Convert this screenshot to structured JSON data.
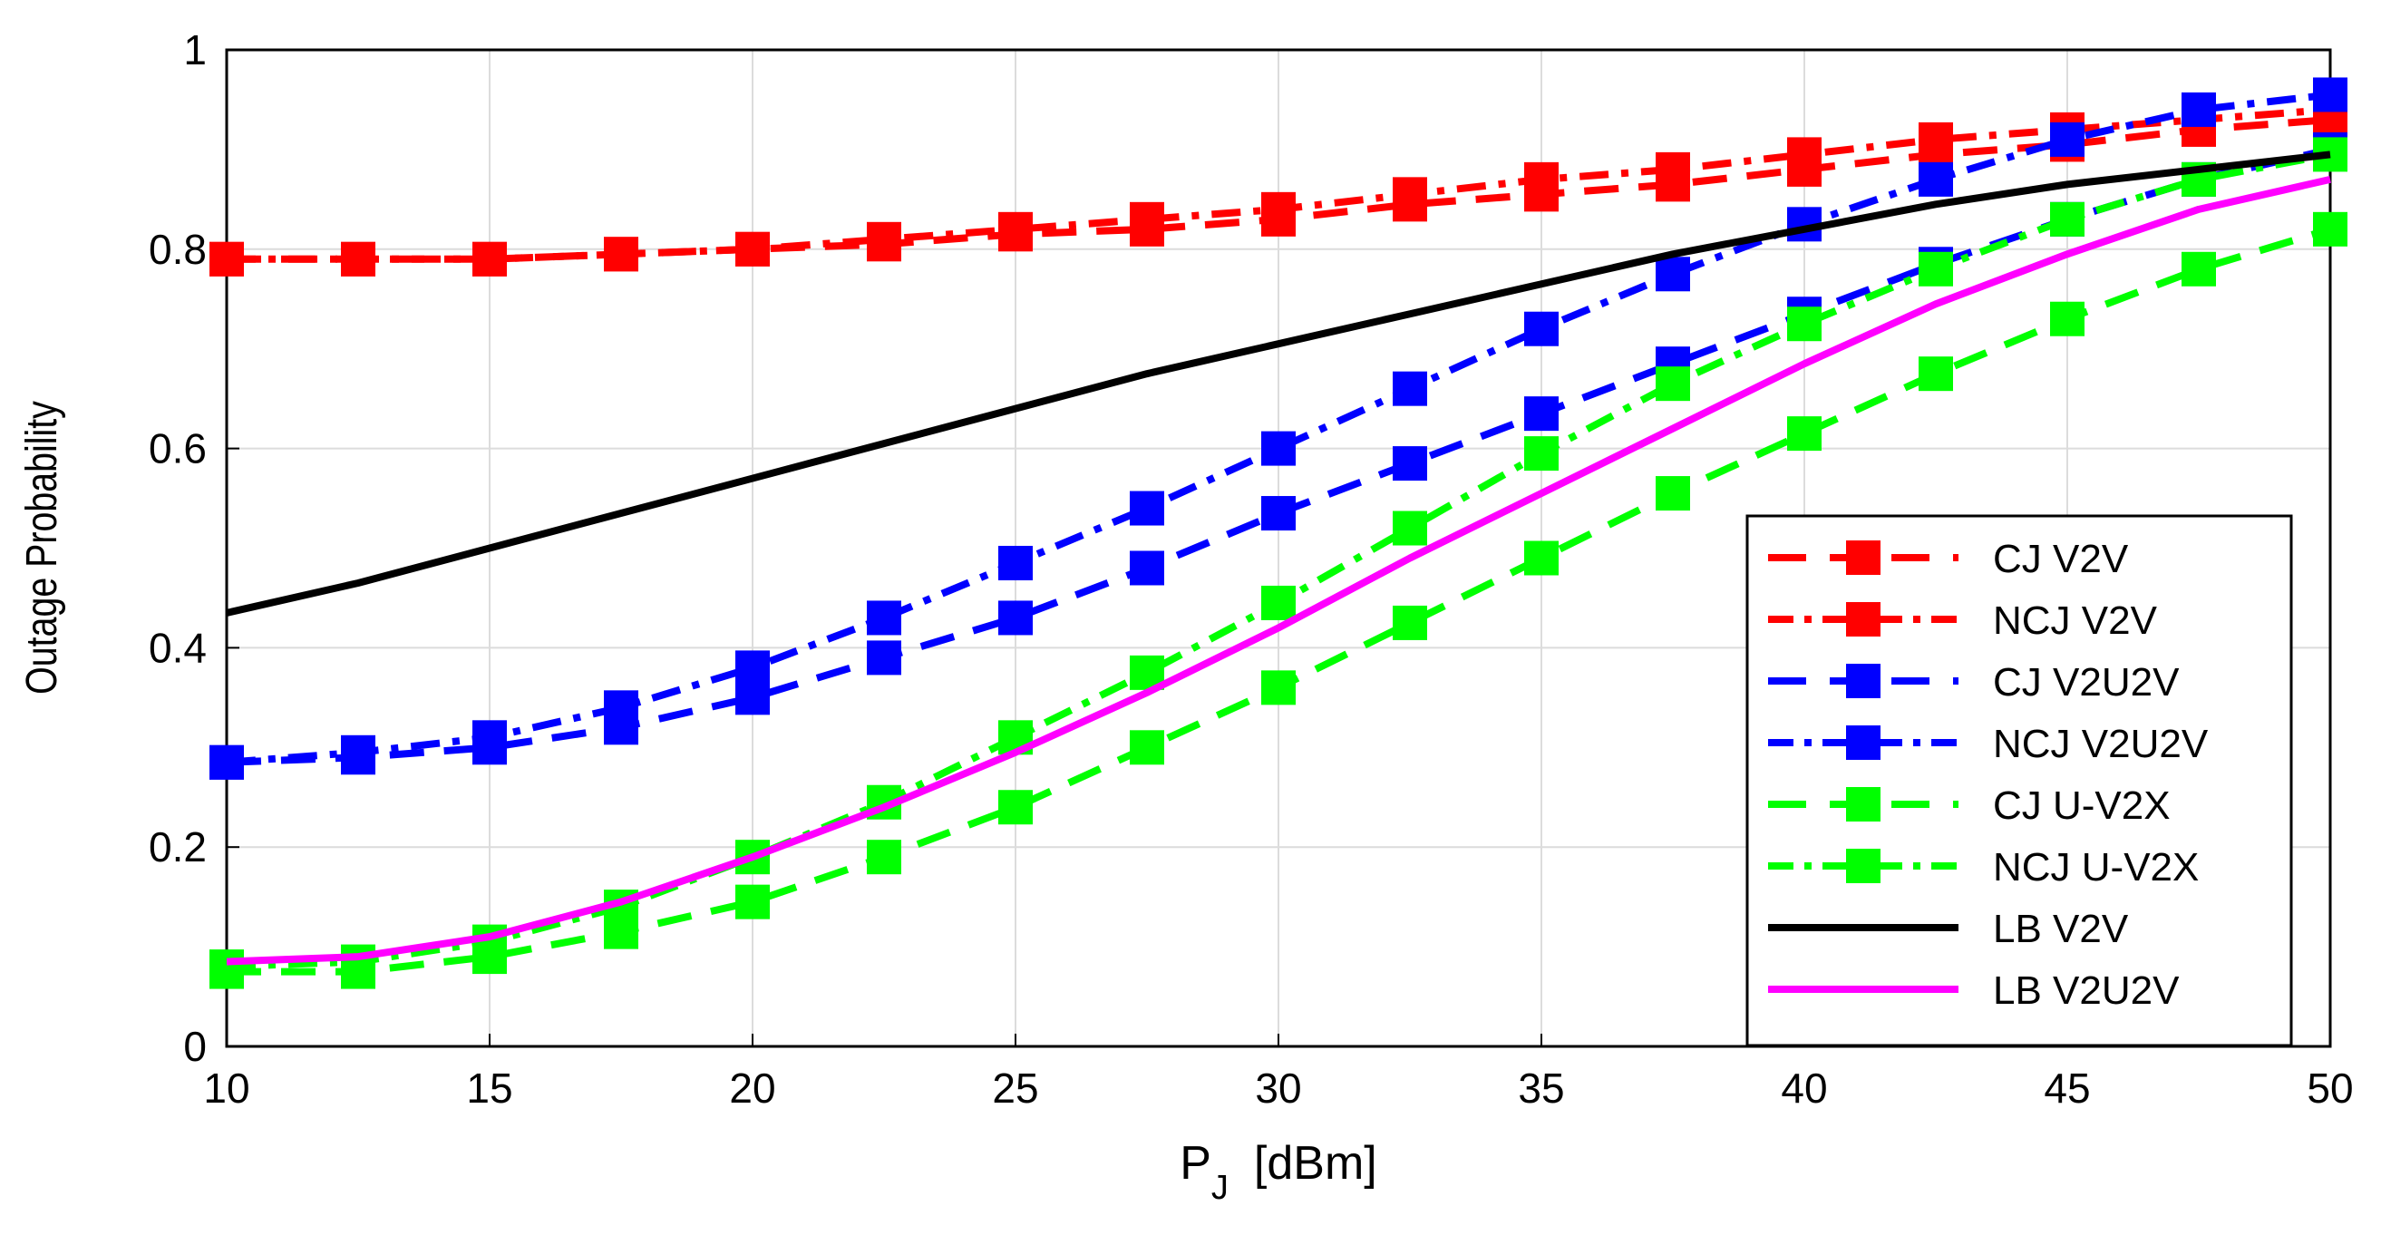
{
  "chart_data": {
    "type": "line",
    "title": "",
    "xlabel_main": "P",
    "xlabel_sub": "J",
    "xlabel_unit": "[dBm]",
    "ylabel": "Outage Probability",
    "xlim": [
      10,
      50
    ],
    "ylim": [
      0,
      1
    ],
    "xticks": [
      10,
      15,
      20,
      25,
      30,
      35,
      40,
      45,
      50
    ],
    "yticks": [
      0,
      0.2,
      0.4,
      0.6,
      0.8,
      1
    ],
    "ytick_labels": [
      "0",
      "0.2",
      "0.4",
      "0.6",
      "0.8",
      "1"
    ],
    "grid": true,
    "legend_position": "bottom-right",
    "x": [
      10,
      12.5,
      15,
      17.5,
      20,
      22.5,
      25,
      27.5,
      30,
      32.5,
      35,
      37.5,
      40,
      42.5,
      45,
      47.5,
      50
    ],
    "series": [
      {
        "name": "CJ V2V",
        "color": "#ff0000",
        "dash": "dashed",
        "marker": "square",
        "values": [
          0.79,
          0.79,
          0.79,
          0.795,
          0.8,
          0.805,
          0.815,
          0.82,
          0.83,
          0.845,
          0.855,
          0.865,
          0.88,
          0.895,
          0.905,
          0.92,
          0.93
        ]
      },
      {
        "name": "NCJ V2V",
        "color": "#ff0000",
        "dash": "dashdot",
        "marker": "square",
        "values": [
          0.79,
          0.79,
          0.79,
          0.795,
          0.8,
          0.81,
          0.82,
          0.83,
          0.84,
          0.855,
          0.87,
          0.88,
          0.895,
          0.91,
          0.92,
          0.93,
          0.94
        ]
      },
      {
        "name": "CJ V2U2V",
        "color": "#0000ff",
        "dash": "dashed",
        "marker": "square",
        "values": [
          0.285,
          0.29,
          0.3,
          0.32,
          0.35,
          0.39,
          0.43,
          0.48,
          0.535,
          0.585,
          0.635,
          0.685,
          0.735,
          0.785,
          0.83,
          0.87,
          0.9
        ]
      },
      {
        "name": "NCJ V2U2V",
        "color": "#0000ff",
        "dash": "dashdot",
        "marker": "square",
        "values": [
          0.285,
          0.295,
          0.31,
          0.34,
          0.38,
          0.43,
          0.485,
          0.54,
          0.6,
          0.66,
          0.72,
          0.775,
          0.825,
          0.87,
          0.91,
          0.94,
          0.955
        ]
      },
      {
        "name": "CJ U-V2X",
        "color": "#00ff00",
        "dash": "dashed",
        "marker": "square",
        "values": [
          0.075,
          0.075,
          0.09,
          0.115,
          0.145,
          0.19,
          0.24,
          0.3,
          0.36,
          0.425,
          0.49,
          0.555,
          0.615,
          0.675,
          0.73,
          0.78,
          0.82
        ]
      },
      {
        "name": "NCJ U-V2X",
        "color": "#00ff00",
        "dash": "dashdot",
        "marker": "square",
        "values": [
          0.08,
          0.085,
          0.105,
          0.14,
          0.19,
          0.245,
          0.31,
          0.375,
          0.445,
          0.52,
          0.595,
          0.665,
          0.725,
          0.78,
          0.83,
          0.87,
          0.895
        ]
      },
      {
        "name": "LB V2V",
        "color": "#000000",
        "dash": "solid",
        "marker": "none",
        "values": [
          0.435,
          0.465,
          0.5,
          0.535,
          0.57,
          0.605,
          0.64,
          0.675,
          0.705,
          0.735,
          0.765,
          0.795,
          0.82,
          0.845,
          0.865,
          0.88,
          0.895
        ]
      },
      {
        "name": "LB V2U2V",
        "color": "#ff00ff",
        "dash": "solid",
        "marker": "none",
        "values": [
          0.085,
          0.09,
          0.11,
          0.145,
          0.19,
          0.24,
          0.295,
          0.355,
          0.42,
          0.49,
          0.555,
          0.62,
          0.685,
          0.745,
          0.795,
          0.84,
          0.87
        ]
      }
    ]
  }
}
